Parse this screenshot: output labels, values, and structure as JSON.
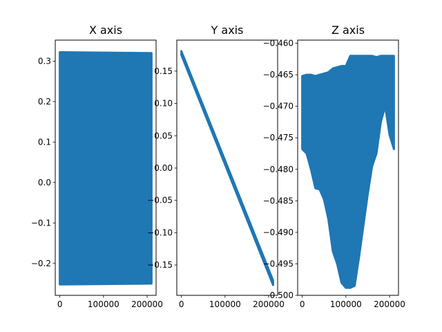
{
  "chart_data": [
    {
      "type": "line",
      "title": "X axis",
      "xlabel": "",
      "ylabel": "",
      "xlim": [
        -10500,
        220500
      ],
      "ylim": [
        -0.279,
        0.352
      ],
      "x_ticks": [
        0,
        100000,
        200000
      ],
      "x_tick_labels": [
        "0",
        "100000",
        "200000"
      ],
      "y_ticks": [
        -0.2,
        -0.1,
        0.0,
        0.1,
        0.2,
        0.3
      ],
      "y_tick_labels": [
        "−0.2",
        "−0.1",
        "0.0",
        "0.1",
        "0.2",
        "0.3"
      ],
      "color": "#1f77b4",
      "description": "dense oscillation filling band",
      "series": [
        {
          "x": [
            0,
            210000
          ],
          "upper": [
            0.322,
            0.32
          ],
          "lower": [
            -0.252,
            -0.25
          ]
        }
      ]
    },
    {
      "type": "line",
      "title": "Y axis",
      "xlabel": "",
      "ylabel": "",
      "xlim": [
        -10500,
        220500
      ],
      "ylim": [
        -0.197,
        0.198
      ],
      "x_ticks": [
        0,
        100000,
        200000
      ],
      "x_tick_labels": [
        "0",
        "100000",
        "200000"
      ],
      "y_ticks": [
        -0.15,
        -0.1,
        -0.05,
        0.0,
        0.05,
        0.1,
        0.15
      ],
      "y_tick_labels": [
        "−0.15",
        "−0.10",
        "−0.05",
        "0.00",
        "0.05",
        "0.10",
        "0.15"
      ],
      "color": "#1f77b4",
      "series": [
        {
          "x": [
            0,
            210000
          ],
          "upper": [
            0.181,
            -0.174
          ],
          "lower": [
            0.175,
            -0.181
          ]
        }
      ]
    },
    {
      "type": "line",
      "title": "Z axis",
      "xlabel": "",
      "ylabel": "",
      "xlim": [
        -10500,
        220500
      ],
      "ylim": [
        -0.5,
        -0.4595
      ],
      "x_ticks": [
        0,
        100000,
        200000
      ],
      "x_tick_labels": [
        "0",
        "100000",
        "200000"
      ],
      "y_ticks": [
        -0.5,
        -0.495,
        -0.49,
        -0.485,
        -0.48,
        -0.475,
        -0.47,
        -0.465,
        -0.46
      ],
      "y_tick_labels": [
        "−0.500",
        "−0.495",
        "−0.490",
        "−0.485",
        "−0.480",
        "−0.475",
        "−0.470",
        "−0.465",
        "−0.460"
      ],
      "color": "#1f77b4",
      "series": [
        {
          "x": [
            0,
            10000,
            20000,
            30000,
            40000,
            50000,
            60000,
            70000,
            80000,
            90000,
            100000,
            110000,
            120000,
            130000,
            140000,
            150000,
            160000,
            170000,
            180000,
            190000,
            200000,
            210000
          ],
          "upper": [
            -0.4652,
            -0.465,
            -0.465,
            -0.4652,
            -0.465,
            -0.4648,
            -0.4646,
            -0.464,
            -0.4638,
            -0.4636,
            -0.4636,
            -0.462,
            -0.462,
            -0.462,
            -0.462,
            -0.462,
            -0.462,
            -0.4622,
            -0.462,
            -0.462,
            -0.462,
            -0.462
          ],
          "lower": [
            -0.4768,
            -0.4775,
            -0.48,
            -0.483,
            -0.4832,
            -0.4848,
            -0.488,
            -0.493,
            -0.495,
            -0.498,
            -0.4988,
            -0.4988,
            -0.4985,
            -0.494,
            -0.489,
            -0.484,
            -0.4795,
            -0.4775,
            -0.4725,
            -0.47,
            -0.4745,
            -0.4768
          ]
        }
      ]
    }
  ]
}
